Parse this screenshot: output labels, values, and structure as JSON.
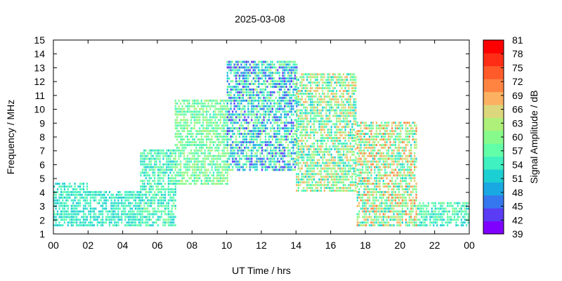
{
  "chart_data": {
    "type": "heatmap",
    "title": "2025-03-08",
    "xlabel": "UT Time / hrs",
    "ylabel": "Frequency / MHz",
    "colorbar_label": "Signal Amplitude / dB",
    "xlim": [
      0,
      24
    ],
    "ylim": [
      1,
      15
    ],
    "x_ticks": [
      "00",
      "02",
      "04",
      "06",
      "08",
      "10",
      "12",
      "14",
      "16",
      "18",
      "20",
      "22",
      "00"
    ],
    "y_ticks": [
      "1",
      "2",
      "3",
      "4",
      "5",
      "6",
      "7",
      "8",
      "9",
      "10",
      "11",
      "12",
      "13",
      "14",
      "15"
    ],
    "colorbar_ticks": [
      "39",
      "42",
      "45",
      "48",
      "51",
      "54",
      "57",
      "60",
      "63",
      "66",
      "69",
      "72",
      "75",
      "78",
      "81"
    ],
    "colorbar_range": [
      39,
      81
    ],
    "colorbar_colors": [
      "#7f00ff",
      "#5a3cf5",
      "#3577ee",
      "#1aa8e3",
      "#1ccfd3",
      "#3ff0c0",
      "#63fea8",
      "#86fb8c",
      "#aef07a",
      "#dcd67c",
      "#fbb161",
      "#ff8442",
      "#ff5a2a",
      "#ff2d15",
      "#ff0000"
    ],
    "band_summary": [
      {
        "time_range": "00-02",
        "freq_range_mhz": [
          1.5,
          4.7
        ],
        "amplitude_db": [
          51,
          57
        ]
      },
      {
        "time_range": "02-05",
        "freq_range_mhz": [
          1.5,
          4.0
        ],
        "amplitude_db": [
          51,
          57
        ]
      },
      {
        "time_range": "05-07",
        "freq_range_mhz": [
          1.5,
          7.0
        ],
        "amplitude_db": [
          51,
          60
        ]
      },
      {
        "time_range": "07-10",
        "freq_range_mhz": [
          4.5,
          10.5
        ],
        "amplitude_db": [
          54,
          63
        ]
      },
      {
        "time_range": "10-14",
        "freq_range_mhz": [
          5.5,
          13.3
        ],
        "amplitude_db": [
          42,
          63
        ]
      },
      {
        "time_range": "14-17.5",
        "freq_range_mhz": [
          4.0,
          12.5
        ],
        "amplitude_db": [
          51,
          69
        ]
      },
      {
        "time_range": "17.5-21",
        "freq_range_mhz": [
          1.5,
          9.0
        ],
        "amplitude_db": [
          51,
          72
        ]
      },
      {
        "time_range": "21-24",
        "freq_range_mhz": [
          1.5,
          3.2
        ],
        "amplitude_db": [
          51,
          60
        ]
      }
    ]
  }
}
